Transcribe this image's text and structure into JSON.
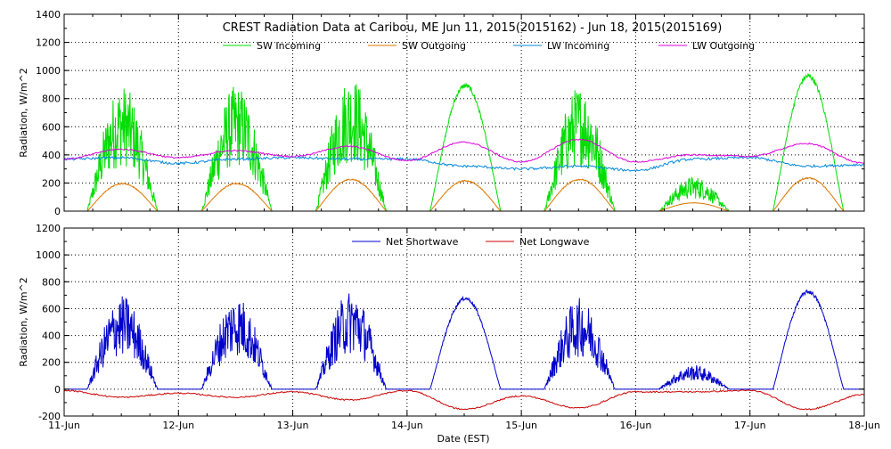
{
  "title": "CREST Radiation Data at Caribou, ME   Jun 11, 2015(2015162) - Jun 18, 2015(2015169)",
  "xlabel": "Date (EST)",
  "colors": {
    "sw_in": "#00dd00",
    "sw_out": "#dd7700",
    "lw_in": "#0088dd",
    "lw_out": "#dd00dd",
    "net_sw": "#0000cc",
    "net_lw": "#cc0000"
  },
  "chart_data": [
    {
      "type": "line",
      "ylabel": "Radiation, W/m^2",
      "xlim": [
        "11-Jun",
        "18-Jun"
      ],
      "ylim": [
        0,
        1400
      ],
      "yticks": [
        0,
        200,
        400,
        600,
        800,
        1000,
        1200,
        1400
      ],
      "grid": true,
      "legend_position": "top",
      "series": [
        {
          "name": "SW Incoming",
          "color_key": "sw_in",
          "daily_peaks": [
            {
              "day": "11-Jun",
              "peak": 900,
              "noisy": true
            },
            {
              "day": "12-Jun",
              "peak": 900,
              "noisy": true
            },
            {
              "day": "13-Jun",
              "peak": 970,
              "noisy": true
            },
            {
              "day": "14-Jun",
              "peak": 910,
              "noisy": false
            },
            {
              "day": "15-Jun",
              "peak": 900,
              "noisy": true
            },
            {
              "day": "16-Jun",
              "peak": 250,
              "noisy": true
            },
            {
              "day": "17-Jun",
              "peak": 980,
              "noisy": false
            }
          ]
        },
        {
          "name": "SW Outgoing",
          "color_key": "sw_out",
          "daily_peaks": [
            {
              "day": "11-Jun",
              "peak": 200
            },
            {
              "day": "12-Jun",
              "peak": 200
            },
            {
              "day": "13-Jun",
              "peak": 230
            },
            {
              "day": "14-Jun",
              "peak": 220
            },
            {
              "day": "15-Jun",
              "peak": 230
            },
            {
              "day": "16-Jun",
              "peak": 60
            },
            {
              "day": "17-Jun",
              "peak": 240
            }
          ]
        },
        {
          "name": "LW Incoming",
          "color_key": "lw_in",
          "x": [
            0,
            0.5,
            1,
            1.5,
            2,
            2.5,
            3,
            3.5,
            4,
            4.5,
            5,
            5.5,
            6,
            6.5,
            7
          ],
          "values": [
            370,
            380,
            340,
            370,
            380,
            370,
            370,
            320,
            300,
            320,
            290,
            370,
            380,
            320,
            330
          ]
        },
        {
          "name": "LW Outgoing",
          "color_key": "lw_out",
          "x": [
            0,
            0.5,
            1,
            1.5,
            2,
            2.5,
            3,
            3.5,
            4,
            4.5,
            5,
            5.5,
            6,
            6.5,
            7
          ],
          "values": [
            370,
            440,
            380,
            430,
            390,
            460,
            360,
            490,
            350,
            510,
            350,
            400,
            390,
            480,
            340
          ]
        }
      ]
    },
    {
      "type": "line",
      "ylabel": "Radiation, W/m^2",
      "xlim": [
        "11-Jun",
        "18-Jun"
      ],
      "ylim": [
        -200,
        1200
      ],
      "yticks": [
        -200,
        0,
        200,
        400,
        600,
        800,
        1000,
        1200
      ],
      "xticks": [
        "11-Jun",
        "12-Jun",
        "13-Jun",
        "14-Jun",
        "15-Jun",
        "16-Jun",
        "17-Jun",
        "18-Jun"
      ],
      "grid": true,
      "legend_position": "top",
      "series": [
        {
          "name": "Net Shortwave",
          "color_key": "net_sw",
          "daily_peaks": [
            {
              "day": "11-Jun",
              "peak": 700,
              "noisy": true
            },
            {
              "day": "12-Jun",
              "peak": 700,
              "noisy": true
            },
            {
              "day": "13-Jun",
              "peak": 740,
              "noisy": true
            },
            {
              "day": "14-Jun",
              "peak": 690,
              "noisy": false
            },
            {
              "day": "15-Jun",
              "peak": 680,
              "noisy": true
            },
            {
              "day": "16-Jun",
              "peak": 180,
              "noisy": true
            },
            {
              "day": "17-Jun",
              "peak": 740,
              "noisy": false
            }
          ]
        },
        {
          "name": "Net Longwave",
          "color_key": "net_lw",
          "x": [
            0,
            0.5,
            1,
            1.5,
            2,
            2.5,
            3,
            3.5,
            4,
            4.5,
            5,
            5.5,
            6,
            6.5,
            7
          ],
          "values": [
            -10,
            -60,
            -30,
            -60,
            -20,
            -80,
            -10,
            -150,
            -50,
            -140,
            -20,
            -20,
            -10,
            -150,
            -40
          ]
        }
      ]
    }
  ]
}
